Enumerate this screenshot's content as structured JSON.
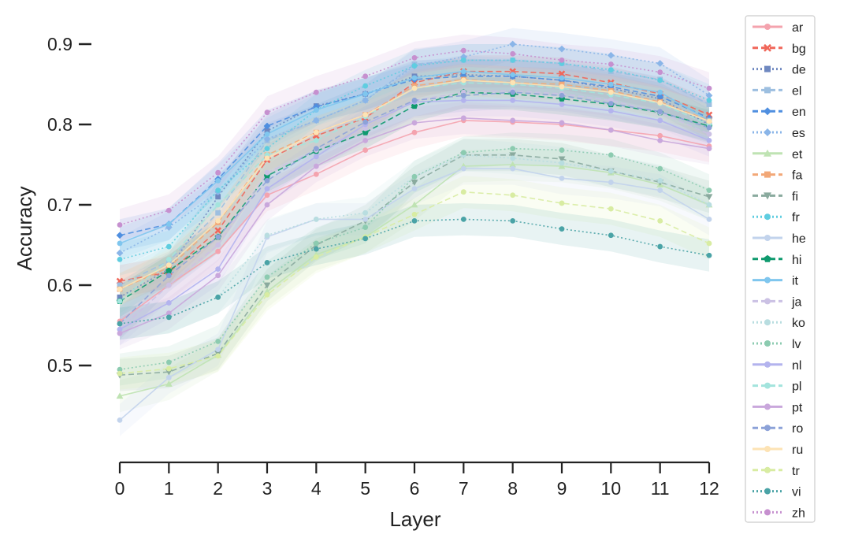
{
  "chart_data": {
    "type": "line",
    "xlabel": "Layer",
    "ylabel": "Accuracy",
    "x": [
      0,
      1,
      2,
      3,
      4,
      5,
      6,
      7,
      8,
      9,
      10,
      11,
      12
    ],
    "xlim": [
      0,
      12
    ],
    "ylim": [
      0.41,
      0.935
    ],
    "yticks": [
      0.5,
      0.6,
      0.7,
      0.8,
      0.9
    ],
    "yticklabels": [
      "0.5",
      "0.6",
      "0.7",
      "0.8",
      "0.9"
    ],
    "xticklabels": [
      "0",
      "1",
      "2",
      "3",
      "4",
      "5",
      "6",
      "7",
      "8",
      "9",
      "10",
      "11",
      "12"
    ],
    "grid": false,
    "legend_position": "right",
    "series": [
      {
        "name": "ar",
        "color": "#f4a3ae",
        "marker": "circle",
        "dash": "solid",
        "values": [
          0.555,
          0.6,
          0.642,
          0.712,
          0.738,
          0.768,
          0.79,
          0.805,
          0.803,
          0.8,
          0.793,
          0.786,
          0.773
        ]
      },
      {
        "name": "bg",
        "color": "#f0675a",
        "marker": "x",
        "dash": "dashed",
        "values": [
          0.605,
          0.616,
          0.668,
          0.756,
          0.786,
          0.808,
          0.852,
          0.866,
          0.866,
          0.863,
          0.852,
          0.838,
          0.812
        ]
      },
      {
        "name": "de",
        "color": "#6f88c0",
        "marker": "square",
        "dash": "dotted",
        "values": [
          0.585,
          0.62,
          0.71,
          0.792,
          0.823,
          0.838,
          0.86,
          0.862,
          0.86,
          0.855,
          0.845,
          0.832,
          0.8
        ]
      },
      {
        "name": "el",
        "color": "#9dbfe0",
        "marker": "square",
        "dash": "dashed",
        "values": [
          0.6,
          0.63,
          0.69,
          0.78,
          0.805,
          0.83,
          0.875,
          0.88,
          0.88,
          0.876,
          0.866,
          0.856,
          0.825
        ]
      },
      {
        "name": "en",
        "color": "#4f8fe0",
        "marker": "diamond",
        "dash": "dashed",
        "values": [
          0.662,
          0.676,
          0.732,
          0.798,
          0.822,
          0.838,
          0.856,
          0.86,
          0.86,
          0.855,
          0.847,
          0.835,
          0.808
        ]
      },
      {
        "name": "es",
        "color": "#8ab5e8",
        "marker": "diamond",
        "dash": "dotted",
        "values": [
          0.64,
          0.672,
          0.716,
          0.782,
          0.805,
          0.83,
          0.873,
          0.884,
          0.9,
          0.894,
          0.886,
          0.876,
          0.836
        ]
      },
      {
        "name": "et",
        "color": "#bfe3b3",
        "marker": "triangle-up",
        "dash": "solid",
        "values": [
          0.462,
          0.477,
          0.513,
          0.592,
          0.638,
          0.66,
          0.7,
          0.748,
          0.75,
          0.748,
          0.74,
          0.725,
          0.7
        ]
      },
      {
        "name": "fa",
        "color": "#f2a878",
        "marker": "square",
        "dash": "dashed",
        "values": [
          0.595,
          0.622,
          0.678,
          0.762,
          0.79,
          0.812,
          0.848,
          0.856,
          0.852,
          0.85,
          0.842,
          0.828,
          0.805
        ]
      },
      {
        "name": "fi",
        "color": "#8aaa9e",
        "marker": "triangle-down",
        "dash": "dashed",
        "values": [
          0.488,
          0.492,
          0.515,
          0.6,
          0.65,
          0.68,
          0.728,
          0.762,
          0.762,
          0.757,
          0.742,
          0.728,
          0.71
        ]
      },
      {
        "name": "fr",
        "color": "#5fcde0",
        "marker": "circle",
        "dash": "dotted",
        "values": [
          0.632,
          0.648,
          0.718,
          0.77,
          0.818,
          0.848,
          0.873,
          0.88,
          0.88,
          0.876,
          0.868,
          0.855,
          0.83
        ]
      },
      {
        "name": "he",
        "color": "#c2d3ec",
        "marker": "circle",
        "dash": "solid",
        "values": [
          0.432,
          0.485,
          0.52,
          0.66,
          0.682,
          0.682,
          0.72,
          0.745,
          0.745,
          0.733,
          0.728,
          0.718,
          0.682
        ]
      },
      {
        "name": "hi",
        "color": "#0f9a6e",
        "marker": "pentagon",
        "dash": "dashed",
        "values": [
          0.58,
          0.618,
          0.66,
          0.736,
          0.767,
          0.79,
          0.823,
          0.84,
          0.838,
          0.832,
          0.825,
          0.815,
          0.798
        ]
      },
      {
        "name": "it",
        "color": "#7fc6ee",
        "marker": "circle",
        "dash": "solid",
        "values": [
          0.652,
          0.676,
          0.73,
          0.788,
          0.818,
          0.838,
          0.858,
          0.866,
          0.862,
          0.858,
          0.85,
          0.84,
          0.805
        ]
      },
      {
        "name": "ja",
        "color": "#cbc1e4",
        "marker": "circle",
        "dash": "dashed",
        "values": [
          0.545,
          0.6,
          0.65,
          0.74,
          0.768,
          0.795,
          0.83,
          0.84,
          0.842,
          0.838,
          0.83,
          0.815,
          0.788
        ]
      },
      {
        "name": "ko",
        "color": "#b8dde0",
        "marker": "circle",
        "dash": "dotted",
        "values": [
          0.552,
          0.56,
          0.585,
          0.662,
          0.682,
          0.69,
          0.735,
          0.762,
          0.758,
          0.752,
          0.742,
          0.73,
          0.7
        ]
      },
      {
        "name": "lv",
        "color": "#8ccbb0",
        "marker": "circle",
        "dash": "dotted",
        "values": [
          0.495,
          0.504,
          0.53,
          0.61,
          0.652,
          0.672,
          0.735,
          0.765,
          0.77,
          0.768,
          0.762,
          0.745,
          0.718
        ]
      },
      {
        "name": "nl",
        "color": "#b3b3ee",
        "marker": "circle",
        "dash": "solid",
        "values": [
          0.545,
          0.578,
          0.62,
          0.72,
          0.76,
          0.8,
          0.828,
          0.83,
          0.83,
          0.825,
          0.817,
          0.805,
          0.78
        ]
      },
      {
        "name": "pl",
        "color": "#a3e4dd",
        "marker": "circle",
        "dash": "dashed",
        "values": [
          0.58,
          0.632,
          0.7,
          0.762,
          0.78,
          0.81,
          0.845,
          0.852,
          0.85,
          0.845,
          0.837,
          0.826,
          0.8
        ]
      },
      {
        "name": "pt",
        "color": "#c9a7dc",
        "marker": "circle",
        "dash": "solid",
        "values": [
          0.54,
          0.565,
          0.612,
          0.7,
          0.748,
          0.78,
          0.802,
          0.808,
          0.805,
          0.802,
          0.793,
          0.78,
          0.77
        ]
      },
      {
        "name": "ro",
        "color": "#8ca2d8",
        "marker": "circle",
        "dash": "dashed",
        "values": [
          0.552,
          0.612,
          0.66,
          0.73,
          0.77,
          0.803,
          0.83,
          0.836,
          0.84,
          0.836,
          0.826,
          0.816,
          0.796
        ]
      },
      {
        "name": "ru",
        "color": "#fde3b4",
        "marker": "circle",
        "dash": "solid",
        "values": [
          0.595,
          0.625,
          0.68,
          0.758,
          0.79,
          0.812,
          0.845,
          0.855,
          0.852,
          0.847,
          0.84,
          0.827,
          0.804
        ]
      },
      {
        "name": "tr",
        "color": "#d8eca2",
        "marker": "circle",
        "dash": "dashed",
        "values": [
          0.49,
          0.496,
          0.512,
          0.588,
          0.635,
          0.66,
          0.688,
          0.716,
          0.712,
          0.702,
          0.695,
          0.68,
          0.652
        ]
      },
      {
        "name": "vi",
        "color": "#4aa3a6",
        "marker": "circle",
        "dash": "dotted",
        "values": [
          0.552,
          0.56,
          0.585,
          0.628,
          0.645,
          0.658,
          0.68,
          0.682,
          0.68,
          0.67,
          0.662,
          0.648,
          0.637
        ]
      },
      {
        "name": "zh",
        "color": "#c690cf",
        "marker": "circle",
        "dash": "dotted",
        "values": [
          0.675,
          0.693,
          0.74,
          0.815,
          0.84,
          0.86,
          0.883,
          0.892,
          0.888,
          0.88,
          0.875,
          0.865,
          0.845
        ]
      }
    ]
  }
}
